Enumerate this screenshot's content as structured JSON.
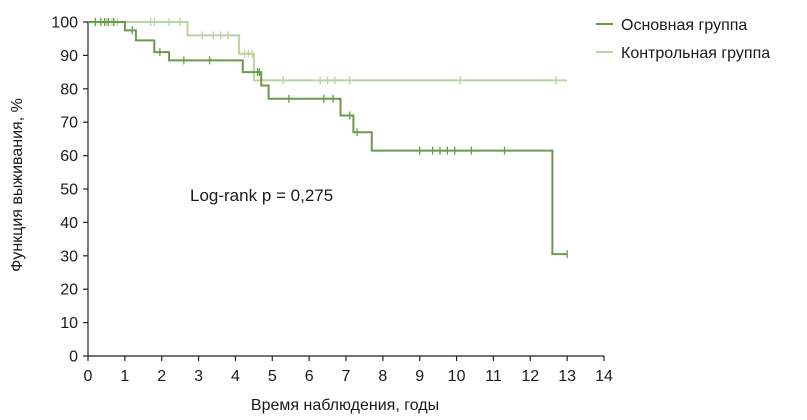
{
  "chart_data": {
    "type": "line",
    "step": true,
    "xlabel": "Время наблюдения, годы",
    "ylabel": "Функция выживания, %",
    "xlim": [
      0,
      14
    ],
    "ylim": [
      0,
      100
    ],
    "xticks": [
      0,
      1,
      2,
      3,
      4,
      5,
      6,
      7,
      8,
      9,
      10,
      11,
      12,
      13,
      14
    ],
    "yticks": [
      0,
      10,
      20,
      30,
      40,
      50,
      60,
      70,
      80,
      90,
      100
    ],
    "grid": false,
    "legend_position": "top-right",
    "annotation": "Log-rank p = 0,275",
    "series": [
      {
        "name": "Основная группа",
        "color": "#6a9a4a",
        "points": [
          [
            0,
            100
          ],
          [
            1,
            100
          ],
          [
            1,
            97.5
          ],
          [
            1.3,
            97.5
          ],
          [
            1.3,
            94.5
          ],
          [
            1.8,
            94.5
          ],
          [
            1.8,
            91
          ],
          [
            2.2,
            91
          ],
          [
            2.2,
            88.5
          ],
          [
            4.2,
            88.5
          ],
          [
            4.2,
            85
          ],
          [
            4.7,
            85
          ],
          [
            4.7,
            81
          ],
          [
            4.9,
            81
          ],
          [
            4.9,
            77
          ],
          [
            6.85,
            77
          ],
          [
            6.85,
            72
          ],
          [
            7.2,
            72
          ],
          [
            7.2,
            67
          ],
          [
            7.7,
            67
          ],
          [
            7.7,
            61.5
          ],
          [
            12.6,
            61.5
          ],
          [
            12.6,
            30.5
          ],
          [
            13,
            30.5
          ]
        ],
        "censored": [
          [
            0.2,
            100
          ],
          [
            0.35,
            100
          ],
          [
            0.45,
            100
          ],
          [
            0.55,
            100
          ],
          [
            0.7,
            100
          ],
          [
            1.2,
            97.5
          ],
          [
            1.95,
            91
          ],
          [
            2.6,
            88.5
          ],
          [
            3.3,
            88.5
          ],
          [
            4.6,
            85
          ],
          [
            4.65,
            85
          ],
          [
            5.45,
            77
          ],
          [
            6.4,
            77
          ],
          [
            6.65,
            77
          ],
          [
            7.1,
            72
          ],
          [
            7.3,
            67
          ],
          [
            9,
            61.5
          ],
          [
            9.35,
            61.5
          ],
          [
            9.55,
            61.5
          ],
          [
            9.75,
            61.5
          ],
          [
            9.95,
            61.5
          ],
          [
            10.4,
            61.5
          ],
          [
            11.3,
            61.5
          ],
          [
            13,
            30.5
          ]
        ]
      },
      {
        "name": "Контрольная группа",
        "color": "#b8d4a0",
        "points": [
          [
            0,
            100
          ],
          [
            2.7,
            100
          ],
          [
            2.7,
            96
          ],
          [
            4.1,
            96
          ],
          [
            4.1,
            90.5
          ],
          [
            4.5,
            90.5
          ],
          [
            4.5,
            82.5
          ],
          [
            13,
            82.5
          ]
        ],
        "censored": [
          [
            0.2,
            100
          ],
          [
            0.35,
            100
          ],
          [
            0.5,
            100
          ],
          [
            0.65,
            100
          ],
          [
            0.8,
            100
          ],
          [
            1.7,
            100
          ],
          [
            1.8,
            100
          ],
          [
            2.2,
            100
          ],
          [
            2.5,
            100
          ],
          [
            3.1,
            96
          ],
          [
            3.4,
            96
          ],
          [
            3.6,
            96
          ],
          [
            3.8,
            96
          ],
          [
            4.25,
            90.5
          ],
          [
            4.35,
            90.5
          ],
          [
            4.45,
            90.5
          ],
          [
            5.3,
            82.5
          ],
          [
            6.3,
            82.5
          ],
          [
            6.5,
            82.5
          ],
          [
            6.7,
            82.5
          ],
          [
            7.1,
            82.5
          ],
          [
            10.1,
            82.5
          ],
          [
            12.7,
            82.5
          ]
        ]
      }
    ]
  }
}
